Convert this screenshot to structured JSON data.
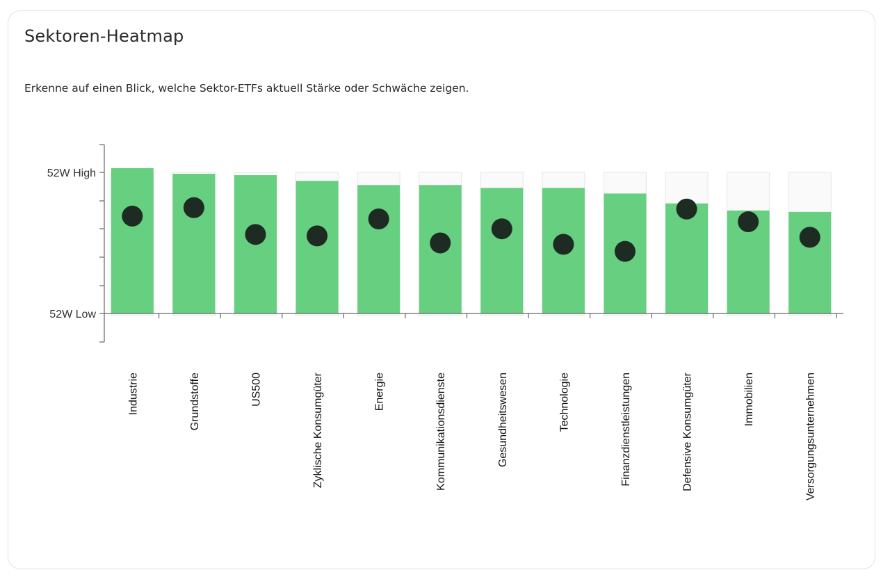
{
  "header": {
    "title": "Sektoren-Heatmap",
    "subtitle": "Erkenne auf einen Blick, welche Sektor-ETFs aktuell Stärke oder Schwäche zeigen."
  },
  "chart_data": {
    "type": "bar",
    "y_tick_labels": {
      "high": "52W High",
      "low": "52W Low"
    },
    "ylim": [
      0,
      1
    ],
    "categories": [
      "Industrie",
      "Grundstoffe",
      "US500",
      "Zyklische Konsumgüter",
      "Energie",
      "Kommunikationsdienste",
      "Gesundheitswesen",
      "Technologie",
      "Finanzdienstleistungen",
      "Defensive Konsumgüter",
      "Immobilien",
      "Versorgungsunternehmen"
    ],
    "series": [
      {
        "values": [
          1.03,
          0.99,
          0.98,
          0.94,
          0.91,
          0.91,
          0.89,
          0.89,
          0.85,
          0.78,
          0.73,
          0.72
        ]
      },
      {
        "values": [
          0.69,
          0.75,
          0.56,
          0.55,
          0.67,
          0.5,
          0.6,
          0.49,
          0.44,
          0.74,
          0.65,
          0.54
        ]
      }
    ],
    "colors": {
      "bar": "#66cf80",
      "dot": "#1e2b22",
      "range_box": "#fafafa",
      "range_border": "#e6e6e6",
      "axis": "#666666"
    },
    "grid": false
  }
}
